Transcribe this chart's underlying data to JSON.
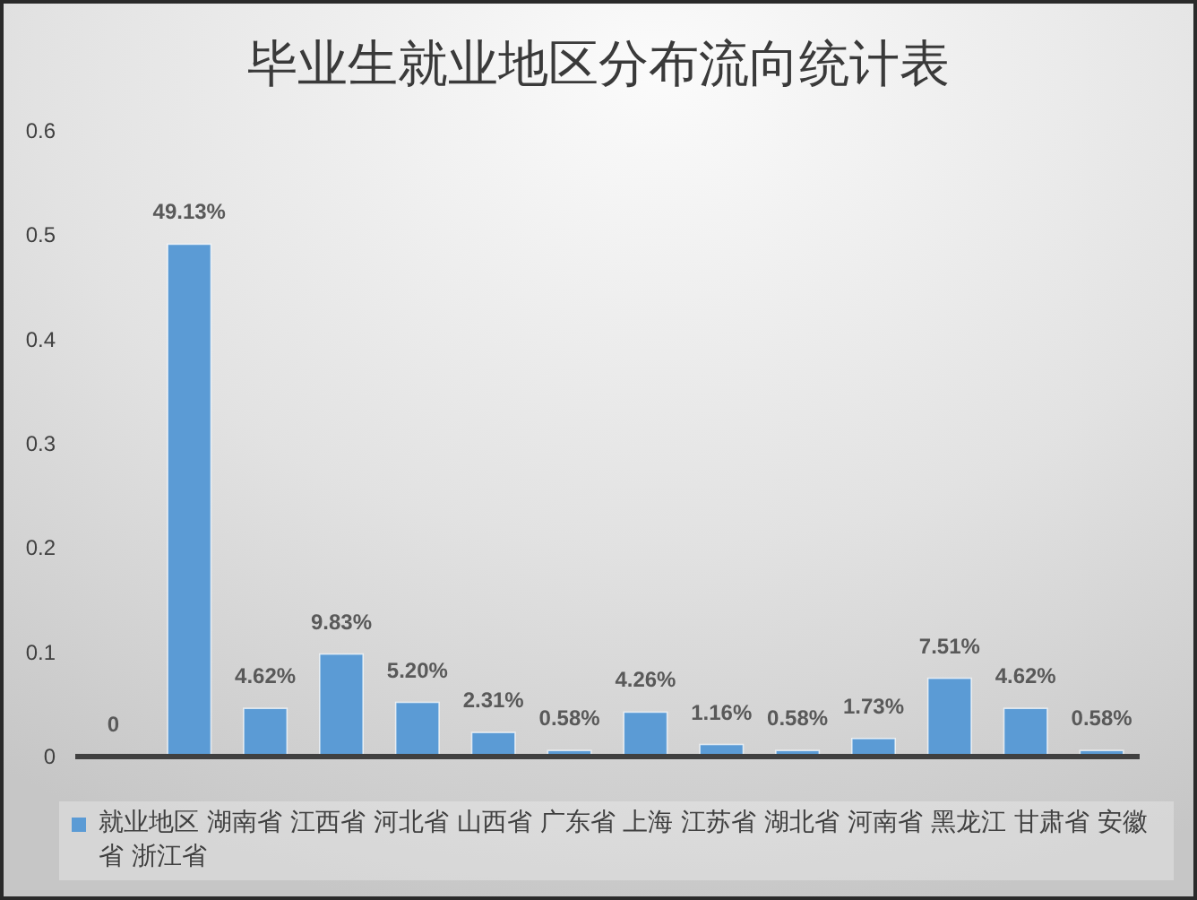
{
  "chart_data": {
    "type": "bar",
    "title": "毕业生就业地区分布流向统计表",
    "categories": [
      null,
      null,
      null,
      null,
      null,
      null,
      null,
      null,
      null,
      null,
      null,
      null,
      null,
      null
    ],
    "series": [
      {
        "name": "就业地区 湖南省 江西省 河北省 山西省 广东省 上海 江苏省 湖北省 河南省 黑龙江 甘肃省 安徽省 浙江省",
        "color": "#5b9bd5",
        "values": [
          0,
          0.4913,
          0.0462,
          0.0983,
          0.052,
          0.0231,
          0.0058,
          0.0426,
          0.0116,
          0.0058,
          0.0173,
          0.0751,
          0.0462,
          0.0058
        ],
        "value_labels": [
          "0",
          "49.13%",
          "4.62%",
          "9.83%",
          "5.20%",
          "2.31%",
          "0.58%",
          "4.26%",
          "1.16%",
          "0.58%",
          "1.73%",
          "7.51%",
          "4.62%",
          "0.58%"
        ]
      }
    ],
    "ylim": [
      0,
      0.6
    ],
    "yticks": [
      0,
      0.1,
      0.2,
      0.3,
      0.4,
      0.5,
      0.6
    ],
    "grid": false,
    "legend": "bottom"
  }
}
